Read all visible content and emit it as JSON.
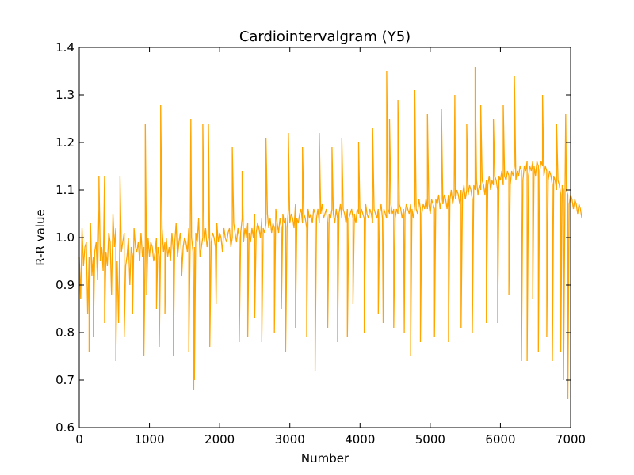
{
  "chart_data": {
    "type": "line",
    "title": "Cardiointervalgram (Y5)",
    "xlabel": "Number",
    "ylabel": "R-R value",
    "xlim": [
      0,
      7000
    ],
    "ylim": [
      0.6,
      1.4
    ],
    "xticks": [
      0,
      1000,
      2000,
      3000,
      4000,
      5000,
      6000,
      7000
    ],
    "yticks": [
      0.6,
      0.7,
      0.8,
      0.9,
      1.0,
      1.1,
      1.2,
      1.3,
      1.4
    ],
    "xtick_labels": [
      "0",
      "1000",
      "2000",
      "3000",
      "4000",
      "5000",
      "6000",
      "7000"
    ],
    "ytick_labels": [
      "0.6",
      "0.7",
      "0.8",
      "0.9",
      "1.0",
      "1.1",
      "1.2",
      "1.3",
      "1.4"
    ],
    "grid": false,
    "series": [
      {
        "color": "#ffa500",
        "x_start": 0,
        "x_step": 20,
        "values": [
          0.96,
          0.87,
          1.02,
          0.94,
          0.98,
          0.99,
          0.84,
          0.96,
          1.03,
          0.92,
          0.96,
          0.97,
          0.99,
          0.91,
          1.06,
          0.95,
          0.98,
          0.93,
          1.13,
          0.97,
          0.94,
          1.01,
          0.99,
          0.88,
          1.05,
          0.98,
          1.02,
          0.95,
          0.82,
          1.03,
          0.97,
          0.99,
          1.01,
          0.94,
          0.96,
          1.0,
          0.9,
          0.98,
          0.96,
          1.02,
          0.98,
          0.97,
          0.99,
          0.95,
          1.01,
          0.96,
          0.98,
          0.97,
          0.93,
          1.0,
          0.96,
          0.99,
          0.98,
          0.95,
          0.97,
          1.0,
          0.98,
          0.96,
          0.99,
          1.02,
          0.97,
          0.99,
          1.0,
          0.96,
          0.98,
          0.95,
          1.01,
          0.97,
          0.99,
          1.03,
          0.96,
          0.99,
          1.01,
          0.95,
          0.98,
          1.0,
          0.99,
          0.97,
          1.02,
          0.98,
          1.0,
          0.97,
          0.98,
          1.01,
          0.99,
          1.04,
          0.96,
          0.98,
          1.0,
          0.99,
          1.02,
          0.98,
          1.0,
          0.97,
          0.99,
          1.01,
          1.0,
          0.98,
          1.03,
          0.99,
          1.01,
          1.0,
          0.97,
          1.02,
          1.0,
          0.99,
          1.01,
          1.02,
          0.98,
          1.0,
          1.03,
          1.01,
          0.99,
          1.02,
          1.0,
          1.01,
          1.04,
          0.99,
          1.02,
          1.0,
          1.03,
          1.01,
          0.99,
          1.02,
          1.0,
          1.05,
          1.01,
          1.03,
          1.02,
          1.0,
          1.04,
          1.02,
          1.01,
          1.03,
          1.05,
          1.02,
          1.04,
          1.01,
          1.03,
          1.02,
          1.06,
          1.03,
          1.01,
          1.04,
          1.02,
          1.05,
          1.03,
          1.04,
          1.02,
          1.06,
          1.03,
          1.05,
          1.04,
          1.02,
          1.07,
          1.04,
          1.03,
          1.05,
          1.06,
          1.03,
          1.05,
          1.04,
          1.02,
          1.06,
          1.04,
          1.05,
          1.03,
          1.06,
          1.05,
          1.04,
          1.06,
          1.03,
          1.05,
          1.07,
          1.04,
          1.05,
          1.06,
          1.03,
          1.05,
          1.04,
          1.06,
          1.05,
          1.03,
          1.06,
          1.04,
          1.05,
          1.07,
          1.04,
          1.06,
          1.05,
          1.03,
          1.06,
          1.04,
          1.05,
          1.06,
          1.04,
          1.05,
          1.03,
          1.06,
          1.05,
          1.04,
          1.06,
          1.05,
          1.04,
          1.07,
          1.05,
          1.04,
          1.06,
          1.05,
          1.03,
          1.06,
          1.05,
          1.04,
          1.06,
          1.05,
          1.07,
          1.04,
          1.06,
          1.05,
          1.04,
          1.06,
          1.05,
          1.07,
          1.05,
          1.06,
          1.04,
          1.06,
          1.05,
          1.07,
          1.06,
          1.04,
          1.06,
          1.05,
          1.07,
          1.06,
          1.05,
          1.07,
          1.06,
          1.04,
          1.07,
          1.06,
          1.05,
          1.08,
          1.06,
          1.05,
          1.07,
          1.06,
          1.08,
          1.06,
          1.07,
          1.05,
          1.08,
          1.07,
          1.06,
          1.08,
          1.07,
          1.09,
          1.06,
          1.08,
          1.07,
          1.09,
          1.08,
          1.06,
          1.09,
          1.08,
          1.1,
          1.07,
          1.09,
          1.08,
          1.1,
          1.09,
          1.07,
          1.1,
          1.09,
          1.11,
          1.08,
          1.1,
          1.09,
          1.11,
          1.1,
          1.08,
          1.11,
          1.1,
          1.12,
          1.09,
          1.11,
          1.1,
          1.12,
          1.11,
          1.09,
          1.12,
          1.11,
          1.13,
          1.1,
          1.12,
          1.11,
          1.13,
          1.12,
          1.1,
          1.13,
          1.12,
          1.14,
          1.11,
          1.13,
          1.12,
          1.14,
          1.13,
          1.11,
          1.14,
          1.13,
          1.15,
          1.12,
          1.14,
          1.13,
          1.15,
          1.14,
          1.12,
          1.15,
          1.14,
          1.16,
          1.13,
          1.15,
          1.14,
          1.16,
          1.15,
          1.13,
          1.16,
          1.15,
          1.14,
          1.16,
          1.15,
          1.13,
          1.15,
          1.14,
          1.12,
          1.14,
          1.13,
          1.11,
          1.13,
          1.12,
          1.1,
          1.12,
          1.11,
          1.09,
          1.11,
          1.1,
          1.08,
          1.1,
          1.09,
          1.07,
          1.09,
          1.08,
          1.06,
          1.08,
          1.07,
          1.05,
          1.07,
          1.06,
          1.04
        ]
      }
    ],
    "spikes": [
      [
        140,
        0.76
      ],
      [
        200,
        0.79
      ],
      [
        280,
        1.13
      ],
      [
        360,
        0.82
      ],
      [
        520,
        0.74
      ],
      [
        580,
        1.13
      ],
      [
        640,
        0.79
      ],
      [
        760,
        0.84
      ],
      [
        920,
        0.75
      ],
      [
        940,
        1.24
      ],
      [
        960,
        0.88
      ],
      [
        1100,
        0.85
      ],
      [
        1140,
        0.77
      ],
      [
        1160,
        1.28
      ],
      [
        1220,
        0.84
      ],
      [
        1340,
        0.75
      ],
      [
        1460,
        0.92
      ],
      [
        1560,
        0.76
      ],
      [
        1590,
        1.25
      ],
      [
        1630,
        0.68
      ],
      [
        1640,
        0.7
      ],
      [
        1760,
        1.24
      ],
      [
        1840,
        1.24
      ],
      [
        1860,
        0.77
      ],
      [
        1950,
        0.86
      ],
      [
        2180,
        1.19
      ],
      [
        2280,
        0.78
      ],
      [
        2320,
        1.14
      ],
      [
        2400,
        0.79
      ],
      [
        2500,
        0.83
      ],
      [
        2600,
        0.78
      ],
      [
        2660,
        1.21
      ],
      [
        2780,
        0.8
      ],
      [
        2880,
        0.85
      ],
      [
        2940,
        0.76
      ],
      [
        2980,
        1.22
      ],
      [
        3080,
        0.81
      ],
      [
        3180,
        1.19
      ],
      [
        3240,
        0.79
      ],
      [
        3360,
        0.72
      ],
      [
        3420,
        1.22
      ],
      [
        3540,
        0.81
      ],
      [
        3600,
        1.19
      ],
      [
        3680,
        0.78
      ],
      [
        3740,
        1.21
      ],
      [
        3820,
        0.79
      ],
      [
        3900,
        0.86
      ],
      [
        3980,
        1.2
      ],
      [
        4060,
        0.8
      ],
      [
        4180,
        1.23
      ],
      [
        4260,
        0.84
      ],
      [
        4330,
        0.82
      ],
      [
        4380,
        1.35
      ],
      [
        4420,
        1.25
      ],
      [
        4480,
        0.81
      ],
      [
        4540,
        1.29
      ],
      [
        4630,
        0.8
      ],
      [
        4720,
        0.75
      ],
      [
        4780,
        1.31
      ],
      [
        4860,
        0.78
      ],
      [
        4960,
        1.26
      ],
      [
        5060,
        0.79
      ],
      [
        5160,
        1.27
      ],
      [
        5260,
        0.78
      ],
      [
        5350,
        1.3
      ],
      [
        5440,
        0.81
      ],
      [
        5520,
        1.24
      ],
      [
        5600,
        0.8
      ],
      [
        5640,
        1.36
      ],
      [
        5720,
        1.28
      ],
      [
        5800,
        0.82
      ],
      [
        5900,
        1.25
      ],
      [
        5960,
        0.82
      ],
      [
        6040,
        1.28
      ],
      [
        6120,
        0.88
      ],
      [
        6200,
        1.34
      ],
      [
        6300,
        0.74
      ],
      [
        6380,
        0.74
      ],
      [
        6460,
        0.87
      ],
      [
        6540,
        0.76
      ],
      [
        6600,
        1.3
      ],
      [
        6660,
        0.79
      ],
      [
        6740,
        0.74
      ],
      [
        6800,
        1.24
      ],
      [
        6860,
        0.76
      ],
      [
        6900,
        0.7
      ],
      [
        6930,
        1.26
      ],
      [
        6960,
        0.66
      ]
    ]
  }
}
